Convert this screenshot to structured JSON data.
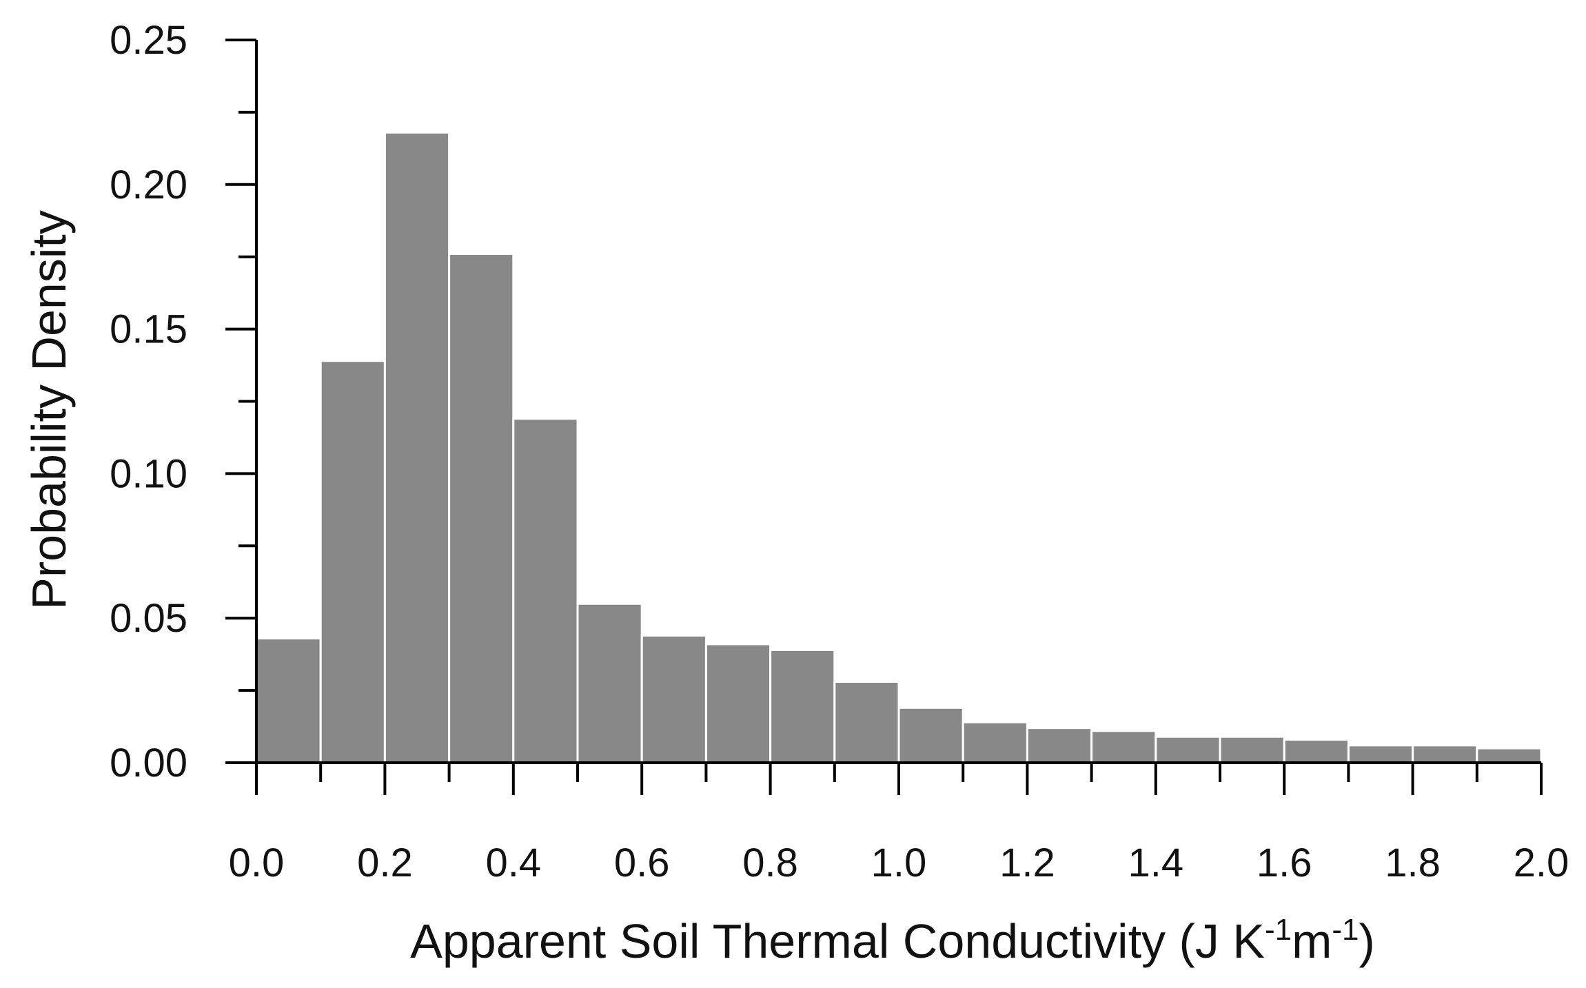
{
  "chart_data": {
    "type": "bar",
    "xlabel_main": "Apparent Soil Thermal Conductivity (J K",
    "xlabel_sup1": "-1",
    "xlabel_mid": "m",
    "xlabel_sup2": "-1",
    "xlabel_end": ")",
    "ylabel": "Probability Density",
    "bin_edges": [
      0.0,
      0.1,
      0.2,
      0.3,
      0.4,
      0.5,
      0.6,
      0.7,
      0.8,
      0.9,
      1.0,
      1.1,
      1.2,
      1.3,
      1.4,
      1.5,
      1.6,
      1.7,
      1.8,
      1.9,
      2.0
    ],
    "values": [
      0.043,
      0.139,
      0.218,
      0.176,
      0.119,
      0.055,
      0.044,
      0.041,
      0.039,
      0.028,
      0.019,
      0.014,
      0.012,
      0.011,
      0.009,
      0.009,
      0.008,
      0.006,
      0.006,
      0.005
    ],
    "xlim": [
      0.0,
      2.0
    ],
    "ylim": [
      0.0,
      0.25
    ],
    "x_ticks": [
      "0.0",
      "0.2",
      "0.4",
      "0.6",
      "0.8",
      "1.0",
      "1.2",
      "1.4",
      "1.6",
      "1.8",
      "2.0"
    ],
    "y_ticks": [
      "0.00",
      "0.05",
      "0.10",
      "0.15",
      "0.20",
      "0.25"
    ],
    "grid": false,
    "bar_color": "#888888"
  }
}
